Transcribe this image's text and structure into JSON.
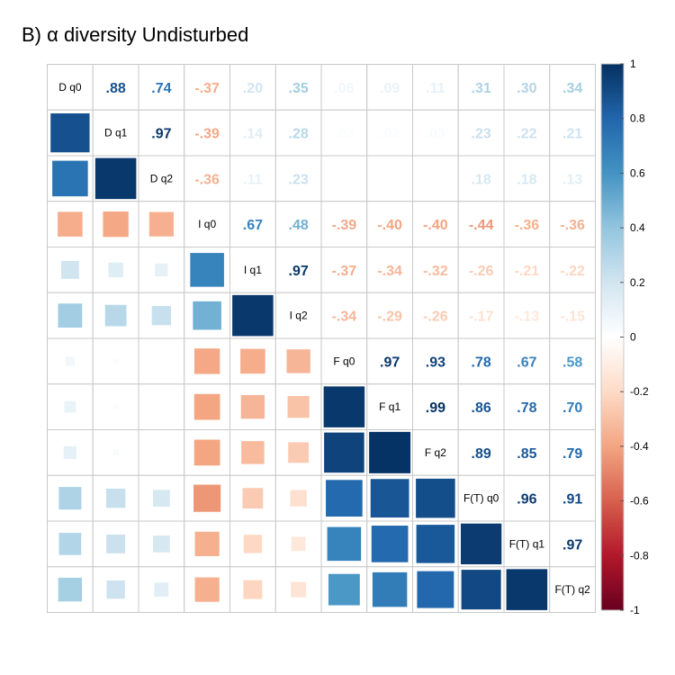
{
  "chart_data": {
    "type": "heatmap",
    "title": "B) α diversity Undisturbed",
    "variables": [
      "D q0",
      "D q1",
      "D q2",
      "I q0",
      "I q1",
      "I q2",
      "F q0",
      "F q1",
      "F q2",
      "F(T) q0",
      "F(T) q1",
      "F(T) q2"
    ],
    "matrix": [
      [
        1,
        0.88,
        0.74,
        -0.37,
        0.2,
        0.35,
        0.06,
        0.09,
        0.11,
        0.31,
        0.3,
        0.34
      ],
      [
        0.88,
        1,
        0.97,
        -0.39,
        0.14,
        0.28,
        0.02,
        0.02,
        0.03,
        0.23,
        0.22,
        0.21
      ],
      [
        0.74,
        0.97,
        1,
        -0.36,
        0.11,
        0.23,
        null,
        null,
        null,
        0.18,
        0.18,
        0.13
      ],
      [
        -0.37,
        -0.39,
        -0.36,
        1,
        0.67,
        0.48,
        -0.39,
        -0.4,
        -0.4,
        -0.44,
        -0.36,
        -0.36
      ],
      [
        0.2,
        0.14,
        0.11,
        0.67,
        1,
        0.97,
        -0.37,
        -0.34,
        -0.32,
        -0.26,
        -0.21,
        -0.22
      ],
      [
        0.35,
        0.28,
        0.23,
        0.48,
        0.97,
        1,
        -0.34,
        -0.29,
        -0.26,
        -0.17,
        -0.13,
        -0.15
      ],
      [
        0.06,
        0.02,
        null,
        -0.39,
        -0.37,
        -0.34,
        1,
        0.97,
        0.93,
        0.78,
        0.67,
        0.58
      ],
      [
        0.09,
        0.02,
        null,
        -0.4,
        -0.34,
        -0.29,
        0.97,
        1,
        0.99,
        0.86,
        0.78,
        0.7
      ],
      [
        0.11,
        0.03,
        null,
        -0.4,
        -0.32,
        -0.26,
        0.93,
        0.99,
        1,
        0.89,
        0.85,
        0.79
      ],
      [
        0.31,
        0.23,
        0.18,
        -0.44,
        -0.26,
        -0.17,
        0.78,
        0.86,
        0.89,
        1,
        0.96,
        0.91
      ],
      [
        0.3,
        0.22,
        0.18,
        -0.36,
        -0.21,
        -0.13,
        0.67,
        0.78,
        0.85,
        0.96,
        1,
        0.97
      ],
      [
        0.34,
        0.21,
        0.13,
        -0.36,
        -0.22,
        -0.15,
        0.58,
        0.7,
        0.79,
        0.91,
        0.97,
        1
      ]
    ],
    "upper_triangle": "numbers",
    "lower_triangle": "squares",
    "diagonal": "variable names",
    "colorbar": {
      "range": [
        -1,
        1
      ],
      "ticks": [
        "1",
        "0.8",
        "0.6",
        "0.4",
        "0.2",
        "0",
        "-0.2",
        "-0.4",
        "-0.6",
        "-0.8",
        "-1"
      ],
      "colors": [
        "#67001F",
        "#B2182B",
        "#D6604D",
        "#F4A582",
        "#FDDBC7",
        "#FFFFFF",
        "#D1E5F0",
        "#92C5DE",
        "#4393C3",
        "#2166AC",
        "#053061"
      ]
    },
    "grid": true,
    "legend_position": "right"
  }
}
